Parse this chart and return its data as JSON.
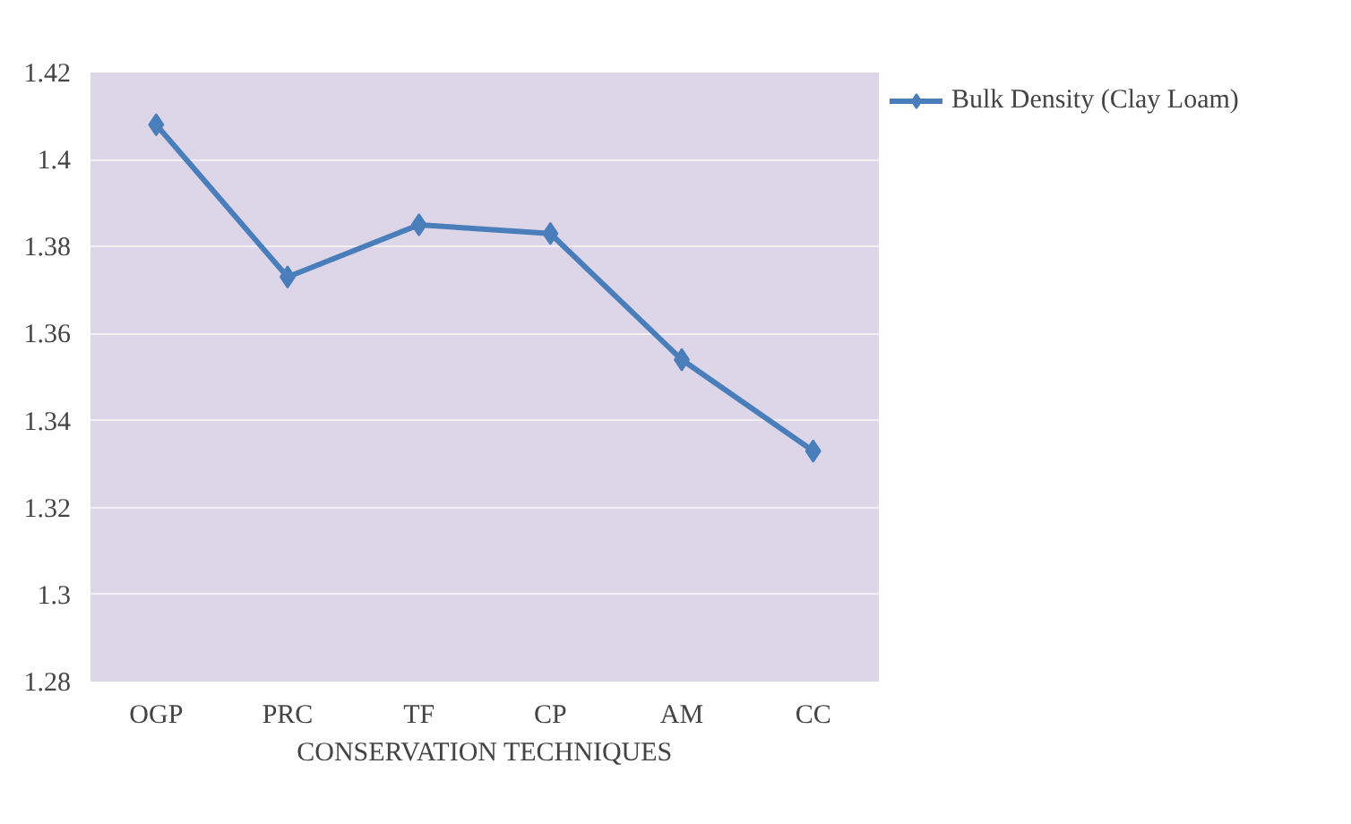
{
  "chart_data": {
    "type": "line",
    "xlabel": "CONSERVATION TECHNIQUES",
    "categories": [
      "OGP",
      "PRC",
      "TF",
      "CP",
      "AM",
      "CC"
    ],
    "series": [
      {
        "name": "Bulk Density (Clay Loam)",
        "color": "#4a7ebb",
        "values": [
          1.408,
          1.373,
          1.385,
          1.383,
          1.354,
          1.333
        ]
      }
    ],
    "ylim": [
      1.28,
      1.42
    ],
    "yticks": [
      1.28,
      1.3,
      1.32,
      1.34,
      1.36,
      1.38,
      1.4,
      1.42
    ],
    "grid": "y",
    "legend": "right",
    "marker": "diamond",
    "line_style": "solid"
  }
}
